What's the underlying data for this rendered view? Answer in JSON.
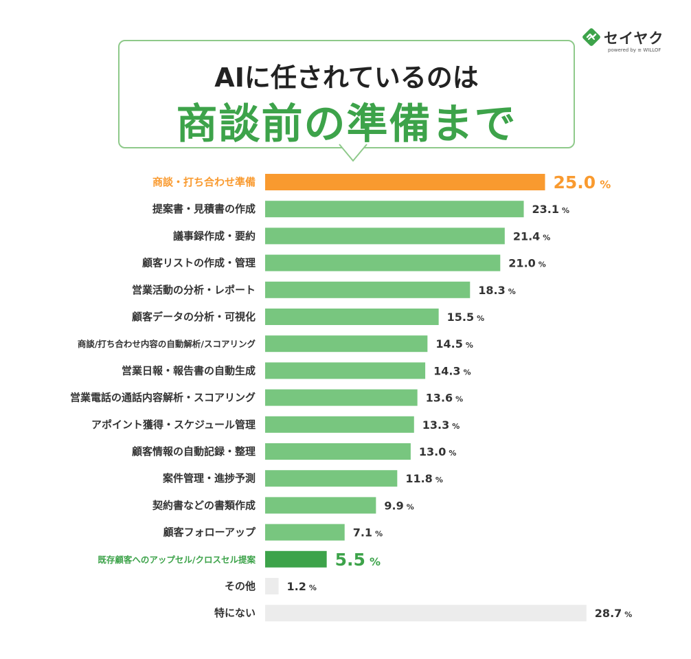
{
  "brand": {
    "name": "セイヤク",
    "sub": "powered by ≡ WILLOF"
  },
  "title": {
    "line1": "AIに任されているのは",
    "line2": "商談前の準備まで"
  },
  "colors": {
    "highlight": "#f99a2f",
    "accent": "#3da34a",
    "bar": "#78c67f",
    "other": "#ececec",
    "text": "#333333"
  },
  "chart_data": {
    "type": "bar",
    "orientation": "horizontal",
    "unit": "%",
    "xlim": [
      0,
      30
    ],
    "categories": [
      "商談・打ち合わせ準備",
      "提案書・見積書の作成",
      "議事録作成・要約",
      "顧客リストの作成・管理",
      "営業活動の分析・レポート",
      "顧客データの分析・可視化",
      "商談/打ち合わせ内容の自動解析/スコアリング",
      "営業日報・報告書の自動生成",
      "営業電話の通話内容解析・スコアリング",
      "アポイント獲得・スケジュール管理",
      "顧客情報の自動記録・整理",
      "案件管理・進捗予測",
      "契約書などの書類作成",
      "顧客フォローアップ",
      "既存顧客へのアップセル/クロスセル提案",
      "その他",
      "特にない"
    ],
    "values": [
      25.0,
      23.1,
      21.4,
      21.0,
      18.3,
      15.5,
      14.5,
      14.3,
      13.6,
      13.3,
      13.0,
      11.8,
      9.9,
      7.1,
      5.5,
      1.2,
      28.7
    ],
    "value_labels": [
      "25.0",
      "23.1",
      "21.4",
      "21.0",
      "18.3",
      "15.5",
      "14.5",
      "14.3",
      "13.6",
      "13.3",
      "13.0",
      "11.8",
      "9.9",
      "7.1",
      "5.5",
      "1.2",
      "28.7"
    ],
    "styles": [
      "highlight",
      "normal",
      "normal",
      "normal",
      "normal",
      "normal",
      "normal",
      "normal",
      "normal",
      "normal",
      "normal",
      "normal",
      "normal",
      "normal",
      "accent",
      "other",
      "other"
    ]
  }
}
